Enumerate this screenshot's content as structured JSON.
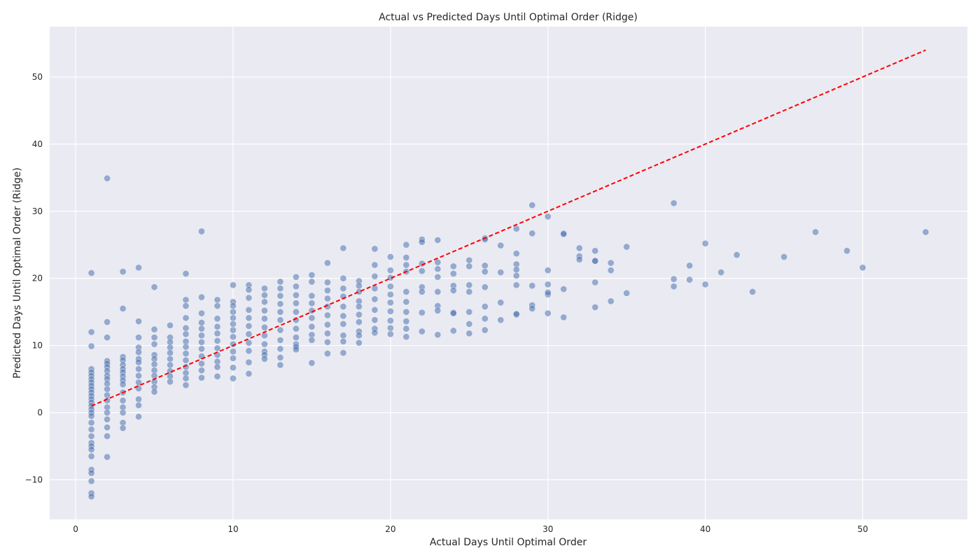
{
  "chart_data": {
    "type": "scatter",
    "title": "Actual vs Predicted Days Until Optimal Order (Ridge)",
    "xlabel": "Actual Days Until Optimal Order",
    "ylabel": "Predicted Days Until Optimal Order (Ridge)",
    "xlim": [
      -1.65,
      56.65
    ],
    "ylim": [
      -15.9,
      57.5
    ],
    "x_ticks": [
      0,
      10,
      20,
      30,
      40,
      50
    ],
    "y_ticks": [
      -10,
      0,
      10,
      20,
      30,
      40,
      50
    ],
    "x_tick_labels": [
      "0",
      "10",
      "20",
      "30",
      "40",
      "50"
    ],
    "y_tick_labels": [
      "−10",
      "0",
      "10",
      "20",
      "30",
      "40",
      "50"
    ],
    "grid": true,
    "point_color": "#4c72b0",
    "background_color": "#eaeaf2",
    "reference_line": {
      "x": [
        1,
        54
      ],
      "y": [
        1,
        54
      ],
      "color": "#ff0000",
      "style": "dashed"
    },
    "series": [
      {
        "x": [
          1,
          1,
          1,
          1,
          1,
          1,
          1,
          1,
          1,
          1,
          1,
          1,
          1,
          1,
          1,
          1,
          1,
          1,
          1,
          1,
          1,
          1,
          1,
          1,
          1,
          1,
          1,
          1,
          1,
          1,
          2,
          2,
          2,
          2,
          2,
          2,
          2,
          2,
          2,
          2,
          2,
          2,
          2,
          2,
          2,
          2,
          2,
          2,
          2,
          3,
          3,
          3,
          3,
          3,
          3,
          3,
          3,
          3,
          3,
          3,
          3,
          3,
          3,
          3,
          3,
          4,
          4,
          4,
          4,
          4,
          4,
          4,
          4,
          4,
          4,
          4,
          4,
          4,
          4,
          5,
          5,
          5,
          5,
          5,
          5,
          5,
          5,
          5,
          5,
          5,
          5,
          6,
          6,
          6,
          6,
          6,
          6,
          6,
          6,
          6,
          6,
          7,
          7,
          7,
          7,
          7,
          7,
          7,
          7,
          7,
          7,
          7,
          7,
          7,
          7,
          8,
          8,
          8,
          8,
          8,
          8,
          8,
          8,
          8,
          8,
          8,
          8,
          9,
          9,
          9,
          9,
          9,
          9,
          9,
          9,
          9,
          9,
          9,
          10,
          10,
          10,
          10,
          10,
          10,
          10,
          10,
          10,
          10,
          10,
          10,
          10,
          11,
          11,
          11,
          11,
          11,
          11,
          11,
          11,
          11,
          11,
          11,
          12,
          12,
          12,
          12,
          12,
          12,
          12,
          12,
          12,
          12,
          12,
          13,
          13,
          13,
          13,
          13,
          13,
          13,
          13,
          13,
          13,
          13,
          14,
          14,
          14,
          14,
          14,
          14,
          14,
          14,
          14,
          14,
          14,
          15,
          15,
          15,
          15,
          15,
          15,
          15,
          15,
          15,
          15,
          16,
          16,
          16,
          16,
          16,
          16,
          16,
          16,
          16,
          16,
          17,
          17,
          17,
          17,
          17,
          17,
          17,
          17,
          17,
          17,
          18,
          18,
          18,
          18,
          18,
          18,
          18,
          18,
          18,
          18,
          19,
          19,
          19,
          19,
          19,
          19,
          19,
          19,
          19,
          20,
          20,
          20,
          20,
          20,
          20,
          20,
          20,
          20,
          20,
          21,
          21,
          21,
          21,
          21,
          21,
          21,
          21,
          21,
          21,
          22,
          22,
          22,
          22,
          22,
          22,
          22,
          22,
          23,
          23,
          23,
          23,
          23,
          23,
          23,
          23,
          24,
          24,
          24,
          24,
          24,
          24,
          24,
          25,
          25,
          25,
          25,
          25,
          25,
          25,
          26,
          26,
          26,
          26,
          26,
          26,
          26,
          26,
          27,
          27,
          27,
          27,
          28,
          28,
          28,
          28,
          28,
          28,
          28,
          28,
          29,
          29,
          29,
          29,
          29,
          30,
          30,
          30,
          30,
          30,
          30,
          31,
          31,
          31,
          31,
          32,
          32,
          32,
          33,
          33,
          33,
          33,
          33,
          34,
          34,
          34,
          35,
          35,
          38,
          38,
          38,
          39,
          39,
          40,
          40,
          41,
          42,
          43,
          45,
          47,
          49,
          50,
          54
        ],
        "y": [
          20.8,
          12,
          9.9,
          6.5,
          6,
          5.5,
          5,
          4.5,
          4,
          3.5,
          3,
          2.5,
          2,
          1.5,
          1,
          0.5,
          0,
          -0.5,
          -1.5,
          -2.5,
          -3.5,
          -4.5,
          -5,
          -5.5,
          -6.5,
          -8.5,
          -9,
          -10.2,
          -12,
          -12.5,
          34.9,
          13.5,
          11.2,
          7.7,
          7.3,
          6.8,
          6.2,
          5.5,
          5,
          4.3,
          3.5,
          2.6,
          1.8,
          0.8,
          0,
          -1,
          -2.2,
          -3.5,
          -6.6,
          21,
          15.5,
          8.3,
          7.8,
          7.1,
          6.5,
          6,
          5.4,
          4.8,
          4.2,
          3,
          1.8,
          0.8,
          0,
          -1.5,
          -2.3,
          21.6,
          13.6,
          11.2,
          9.7,
          9,
          8,
          7.5,
          6.5,
          5.5,
          4.5,
          3.6,
          2,
          1.1,
          -0.6,
          18.7,
          12.4,
          11.2,
          10.2,
          8.6,
          8,
          7.2,
          6.3,
          5.5,
          4.6,
          3.8,
          3.1,
          13,
          11.2,
          10.5,
          9.7,
          8.9,
          8,
          7.1,
          6.2,
          5.4,
          4.6,
          20.7,
          16.8,
          15.9,
          14.1,
          12.6,
          11.7,
          10.6,
          9.8,
          8.8,
          7.8,
          6.8,
          5.9,
          5.1,
          4.1,
          27,
          17.2,
          14.8,
          13.4,
          12.5,
          11.5,
          10.5,
          9.5,
          8.4,
          7.3,
          6.3,
          5.2,
          16.8,
          15.9,
          14,
          12.8,
          11.8,
          10.7,
          9.6,
          8.6,
          7.6,
          6.8,
          5.4,
          19,
          16.5,
          15.9,
          15,
          14.1,
          13.2,
          12.3,
          11.3,
          10.2,
          9.1,
          8.1,
          6.7,
          5.1,
          19,
          18.3,
          17.1,
          15.3,
          14.1,
          12.9,
          11.7,
          10.4,
          9.2,
          7.5,
          5.8,
          18.5,
          17.5,
          16.5,
          15.2,
          14,
          12.7,
          11.5,
          10.2,
          9.1,
          8.6,
          8,
          19.5,
          18.5,
          17.4,
          16.2,
          15,
          13.8,
          12.3,
          10.8,
          9.5,
          8.2,
          7.1,
          20.2,
          18.8,
          17.5,
          16.3,
          15,
          13.8,
          12.5,
          11.2,
          10.2,
          9.8,
          9.4,
          20.5,
          19.5,
          17.4,
          16.3,
          15.2,
          14.1,
          12.8,
          11.6,
          10.8,
          7.4,
          22.3,
          19.4,
          18.2,
          17,
          15.8,
          14.5,
          13.1,
          11.8,
          10.5,
          8.8,
          24.5,
          20,
          18.5,
          17.3,
          15.8,
          14.4,
          13.2,
          11.5,
          10.6,
          8.9,
          19.6,
          18.9,
          18,
          16.6,
          15.8,
          14.6,
          13.5,
          12.1,
          11.5,
          10.4,
          24.4,
          22,
          20.3,
          18.5,
          16.9,
          15.3,
          13.8,
          12.5,
          11.9,
          23.2,
          21.2,
          20.1,
          18.8,
          17.6,
          16.4,
          15.1,
          13.7,
          12.6,
          11.7,
          25,
          23.1,
          22,
          21,
          18,
          16.5,
          15,
          13.6,
          12.5,
          11.3,
          25.8,
          25.4,
          22.2,
          21.1,
          18.7,
          18,
          14.9,
          12.1,
          25.7,
          22.4,
          21.4,
          20.2,
          18,
          15.9,
          15.2,
          11.6,
          21.8,
          20.7,
          18.9,
          18.2,
          14.9,
          14.8,
          12.2,
          22.7,
          21.8,
          19,
          18,
          15,
          13.2,
          11.8,
          26,
          25.8,
          21.9,
          21,
          18.7,
          15.8,
          14,
          12.3,
          24.9,
          20.9,
          16.4,
          13.8,
          27.4,
          23.7,
          22.1,
          21.3,
          20.4,
          19,
          14.6,
          14.7,
          30.9,
          26.7,
          18.9,
          16,
          15.5,
          29.2,
          21.2,
          19.1,
          17.6,
          14.8,
          17.9,
          26.7,
          26.6,
          18.4,
          14.2,
          24.5,
          23.3,
          22.8,
          24.1,
          22.6,
          19.4,
          15.7,
          22.6,
          22.3,
          21.2,
          16.6,
          24.7,
          17.8,
          31.2,
          19.9,
          18.8,
          21.9,
          19.8,
          25.2,
          19.1,
          20.9,
          23.5,
          18,
          23.2,
          26.9,
          24.1,
          21.6,
          26.9
        ]
      }
    ]
  }
}
